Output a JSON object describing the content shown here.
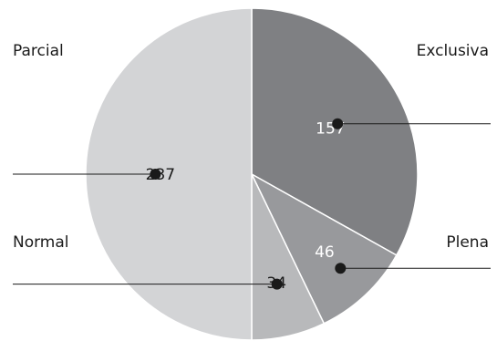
{
  "chart_data": {
    "type": "pie",
    "title": "",
    "slices": [
      {
        "label": "Exclusiva",
        "value": 157,
        "color": "#7f8083",
        "value_color": "#ffffff"
      },
      {
        "label": "Plena",
        "value": 46,
        "color": "#98999c",
        "value_color": "#ffffff"
      },
      {
        "label": "Normal",
        "value": 34,
        "color": "#b8b9bb",
        "value_color": "#1a1a1a"
      },
      {
        "label": "Parcial",
        "value": 237,
        "color": "#d3d4d6",
        "value_color": "#1a1a1a"
      }
    ],
    "start": "top, clockwise",
    "separator_color": "#ffffff",
    "leader_color": "#1a1a1a"
  }
}
